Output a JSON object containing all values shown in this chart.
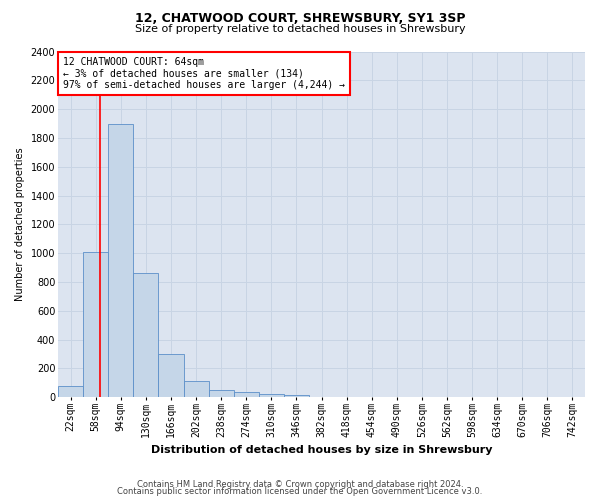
{
  "title1": "12, CHATWOOD COURT, SHREWSBURY, SY1 3SP",
  "title2": "Size of property relative to detached houses in Shrewsbury",
  "xlabel": "Distribution of detached houses by size in Shrewsbury",
  "ylabel": "Number of detached properties",
  "footer1": "Contains HM Land Registry data © Crown copyright and database right 2024.",
  "footer2": "Contains public sector information licensed under the Open Government Licence v3.0.",
  "bin_labels": [
    "22sqm",
    "58sqm",
    "94sqm",
    "130sqm",
    "166sqm",
    "202sqm",
    "238sqm",
    "274sqm",
    "310sqm",
    "346sqm",
    "382sqm",
    "418sqm",
    "454sqm",
    "490sqm",
    "526sqm",
    "562sqm",
    "598sqm",
    "634sqm",
    "670sqm",
    "706sqm",
    "742sqm"
  ],
  "bar_values": [
    80,
    1010,
    1900,
    860,
    300,
    110,
    50,
    35,
    20,
    15,
    0,
    0,
    0,
    0,
    0,
    0,
    0,
    0,
    0,
    0,
    0
  ],
  "bar_color": "#c5d6e8",
  "bar_edge_color": "#5b8fc9",
  "ylim": [
    0,
    2400
  ],
  "yticks": [
    0,
    200,
    400,
    600,
    800,
    1000,
    1200,
    1400,
    1600,
    1800,
    2000,
    2200,
    2400
  ],
  "property_line_x": 1.17,
  "annotation_line1": "12 CHATWOOD COURT: 64sqm",
  "annotation_line2": "← 3% of detached houses are smaller (134)",
  "annotation_line3": "97% of semi-detached houses are larger (4,244) →",
  "annotation_box_color": "white",
  "annotation_box_edge": "red",
  "grid_color": "#c8d4e4",
  "bg_color": "#dce4f0",
  "title_fontsize": 9,
  "subtitle_fontsize": 8,
  "xlabel_fontsize": 8,
  "ylabel_fontsize": 7,
  "tick_fontsize": 7,
  "annot_fontsize": 7,
  "footer_fontsize": 6
}
